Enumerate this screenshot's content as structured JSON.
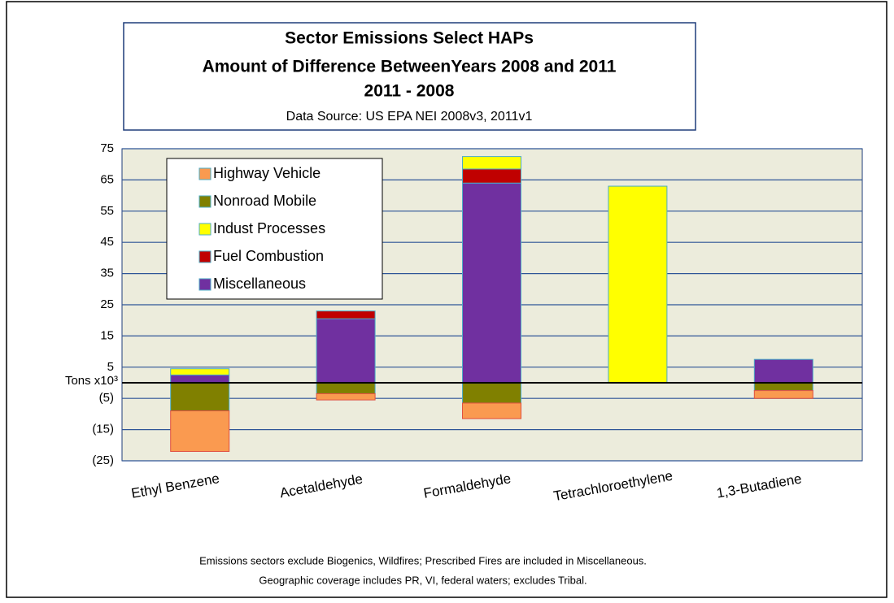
{
  "chart_data": {
    "type": "stacked-bar",
    "title": [
      "Sector Emissions Select HAPs",
      "Amount of Difference BetweenYears 2008 and 2011",
      "2011 - 2008"
    ],
    "subtitle": "Data Source: US EPA NEI 2008v3, 2011v1",
    "ylabel": "Tons x10³",
    "categories": [
      "Ethyl Benzene",
      "Acetaldehyde",
      "Formaldehyde",
      "Tetrachloroethylene",
      "1,3-Butadiene"
    ],
    "series": [
      {
        "name": "Highway Vehicle",
        "color": "#fa9a50",
        "values": [
          -13,
          -2,
          -5,
          0,
          -2.5
        ]
      },
      {
        "name": "Nonroad Mobile",
        "color": "#808000",
        "values": [
          -9,
          -3.5,
          -6.5,
          0,
          -2.5
        ]
      },
      {
        "name": "Indust Processes",
        "color": "#ffff00",
        "values": [
          2,
          0,
          4,
          63,
          0
        ]
      },
      {
        "name": "Fuel Combustion",
        "color": "#c00000",
        "values": [
          0,
          2.5,
          4.5,
          0,
          0
        ]
      },
      {
        "name": "Miscellaneous",
        "color": "#7030a0",
        "values": [
          2.5,
          20.5,
          64,
          0,
          7.5
        ]
      }
    ],
    "ylim": [
      -25,
      75
    ],
    "yticks": [
      75,
      65,
      55,
      45,
      35,
      25,
      15,
      5,
      {
        "value": -5,
        "label": "(5)"
      },
      {
        "value": -15,
        "label": "(15)"
      },
      {
        "value": -25,
        "label": "(25)"
      }
    ],
    "grid": true,
    "notes": [
      "Emissions sectors exclude Biogenics, Wildfires; Prescribed Fires are included in Miscellaneous.",
      "Geographic coverage includes PR, VI, federal waters; excludes Tribal."
    ]
  }
}
